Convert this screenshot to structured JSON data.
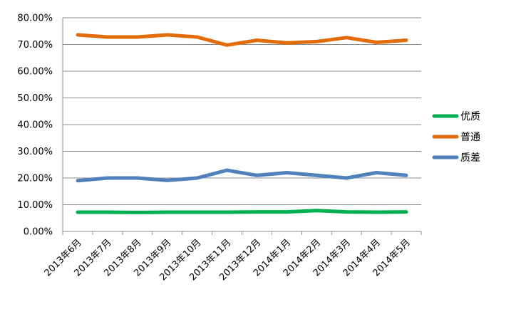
{
  "chart_data": {
    "type": "line",
    "categories": [
      "2013年6月",
      "2013年7月",
      "2013年8月",
      "2013年9月",
      "2013年10月",
      "2013年11月",
      "2013年12月",
      "2014年1月",
      "2014年2月",
      "2014年3月",
      "2014年4月",
      "2014年5月"
    ],
    "series": [
      {
        "name": "优质",
        "color": "#00b050",
        "values": [
          7.2,
          7.2,
          7.1,
          7.2,
          7.2,
          7.2,
          7.3,
          7.3,
          7.8,
          7.3,
          7.2,
          7.3
        ]
      },
      {
        "name": "普通",
        "color": "#e36c09",
        "values": [
          73.6,
          72.8,
          72.8,
          73.6,
          72.8,
          69.8,
          71.6,
          70.6,
          71.1,
          72.6,
          70.8,
          71.6
        ]
      },
      {
        "name": "质差",
        "color": "#4f81bd",
        "values": [
          19.0,
          20.0,
          20.0,
          19.1,
          20.0,
          22.9,
          21.0,
          22.0,
          21.0,
          20.0,
          22.0,
          21.0
        ]
      }
    ],
    "yticks": [
      "0.00%",
      "10.00%",
      "20.00%",
      "30.00%",
      "40.00%",
      "50.00%",
      "60.00%",
      "70.00%",
      "80.00%"
    ],
    "ylim": [
      0,
      80
    ],
    "grid": true,
    "legend_position": "right",
    "title": "",
    "xlabel": "",
    "ylabel": ""
  }
}
